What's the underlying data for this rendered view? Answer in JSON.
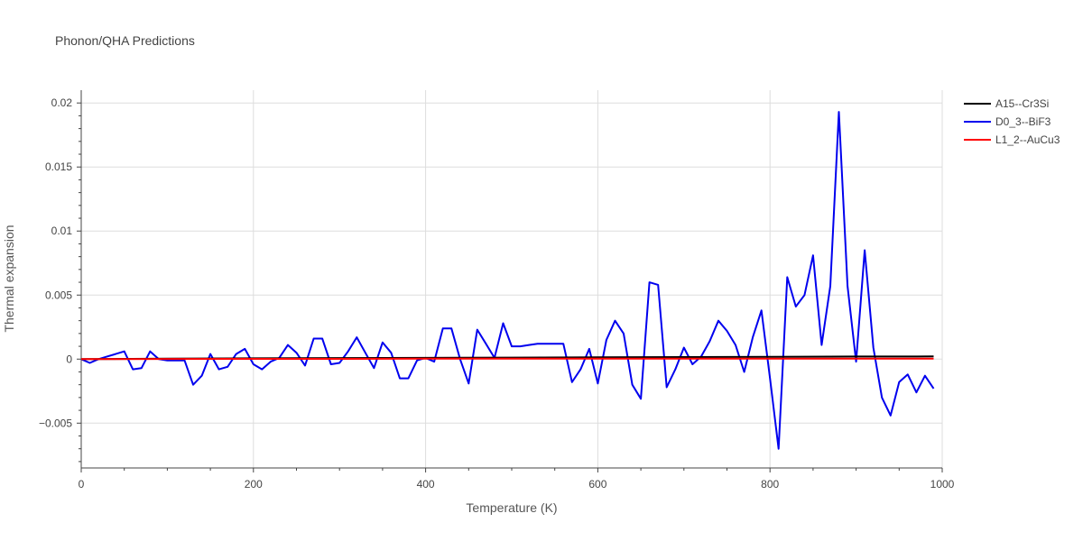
{
  "chart_data": {
    "type": "line",
    "title": "Phonon/QHA Predictions",
    "xlabel": "Temperature (K)",
    "ylabel": "Thermal expansion",
    "xlim": [
      0,
      1000
    ],
    "ylim": [
      -0.0085,
      0.021
    ],
    "x_ticks": [
      0,
      200,
      400,
      600,
      800,
      1000
    ],
    "x_tick_labels": [
      "0",
      "200",
      "400",
      "600",
      "800",
      "1000"
    ],
    "y_ticks": [
      -0.005,
      0,
      0.005,
      0.01,
      0.015,
      0.02
    ],
    "y_tick_labels": [
      "−0.005",
      "0",
      "0.005",
      "0.01",
      "0.015",
      "0.02"
    ],
    "grid": true,
    "legend_position": "top-right",
    "series": [
      {
        "name": "A15--Cr3Si",
        "color": "#000000",
        "x": [
          0,
          100,
          200,
          300,
          400,
          500,
          600,
          700,
          800,
          900,
          990
        ],
        "y": [
          0,
          3e-05,
          6e-05,
          8e-05,
          0.0001,
          0.00012,
          0.00014,
          0.00016,
          0.00018,
          0.0002,
          0.00021
        ]
      },
      {
        "name": "D0_3--BiF3",
        "color": "#0000ee",
        "x": [
          0,
          10,
          20,
          30,
          40,
          50,
          60,
          70,
          80,
          90,
          100,
          110,
          120,
          130,
          140,
          150,
          160,
          170,
          180,
          190,
          200,
          210,
          220,
          230,
          240,
          250,
          260,
          270,
          280,
          290,
          300,
          310,
          320,
          330,
          340,
          350,
          360,
          370,
          380,
          390,
          400,
          410,
          420,
          430,
          440,
          450,
          460,
          470,
          480,
          490,
          500,
          510,
          520,
          530,
          540,
          550,
          560,
          570,
          580,
          590,
          600,
          610,
          620,
          630,
          640,
          650,
          660,
          670,
          680,
          690,
          700,
          710,
          720,
          730,
          740,
          750,
          760,
          770,
          780,
          790,
          800,
          810,
          820,
          830,
          840,
          850,
          860,
          870,
          880,
          890,
          900,
          910,
          920,
          930,
          940,
          950,
          960,
          970,
          980,
          990
        ],
        "y": [
          0,
          -0.0003,
          0,
          0.0002,
          0.0004,
          0.0006,
          -0.0008,
          -0.0007,
          0.0006,
          0,
          -0.0001,
          -0.0001,
          -0.0001,
          -0.002,
          -0.0013,
          0.0004,
          -0.0008,
          -0.0006,
          0.0004,
          0.0008,
          -0.0004,
          -0.0008,
          -0.0002,
          0.0001,
          0.0011,
          0.0005,
          -0.0005,
          0.0016,
          0.0016,
          -0.0004,
          -0.0003,
          0.0006,
          0.0017,
          0.0005,
          -0.0007,
          0.0013,
          0.0005,
          -0.0015,
          -0.0015,
          -0.0001,
          0.0001,
          -0.0002,
          0.0024,
          0.0024,
          0,
          -0.0019,
          0.0023,
          0.0012,
          0.0001,
          0.0028,
          0.001,
          0.001,
          0.0011,
          0.0012,
          0.0012,
          0.0012,
          0.0012,
          -0.0018,
          -0.0008,
          0.0008,
          -0.0019,
          0.0015,
          0.003,
          0.002,
          -0.002,
          -0.0031,
          0.006,
          0.0058,
          -0.0022,
          -0.0008,
          0.0009,
          -0.0004,
          0.0002,
          0.0014,
          0.003,
          0.0022,
          0.0011,
          -0.001,
          0.0017,
          0.0038,
          -0.0015,
          -0.007,
          0.0064,
          0.0041,
          0.005,
          0.0081,
          0.0011,
          0.0057,
          0.0193,
          0.0057,
          -0.0002,
          0.0085,
          0.0009,
          -0.003,
          -0.0044,
          -0.0018,
          -0.0012,
          -0.0026,
          -0.0013,
          -0.0023
        ]
      },
      {
        "name": "L1_2--AuCu3",
        "color": "#ff0000",
        "x": [
          0,
          100,
          200,
          300,
          400,
          500,
          600,
          700,
          800,
          900,
          990
        ],
        "y": [
          0,
          1e-05,
          2e-05,
          2e-05,
          3e-05,
          3e-05,
          3e-05,
          4e-05,
          4e-05,
          4e-05,
          4e-05
        ]
      }
    ]
  }
}
